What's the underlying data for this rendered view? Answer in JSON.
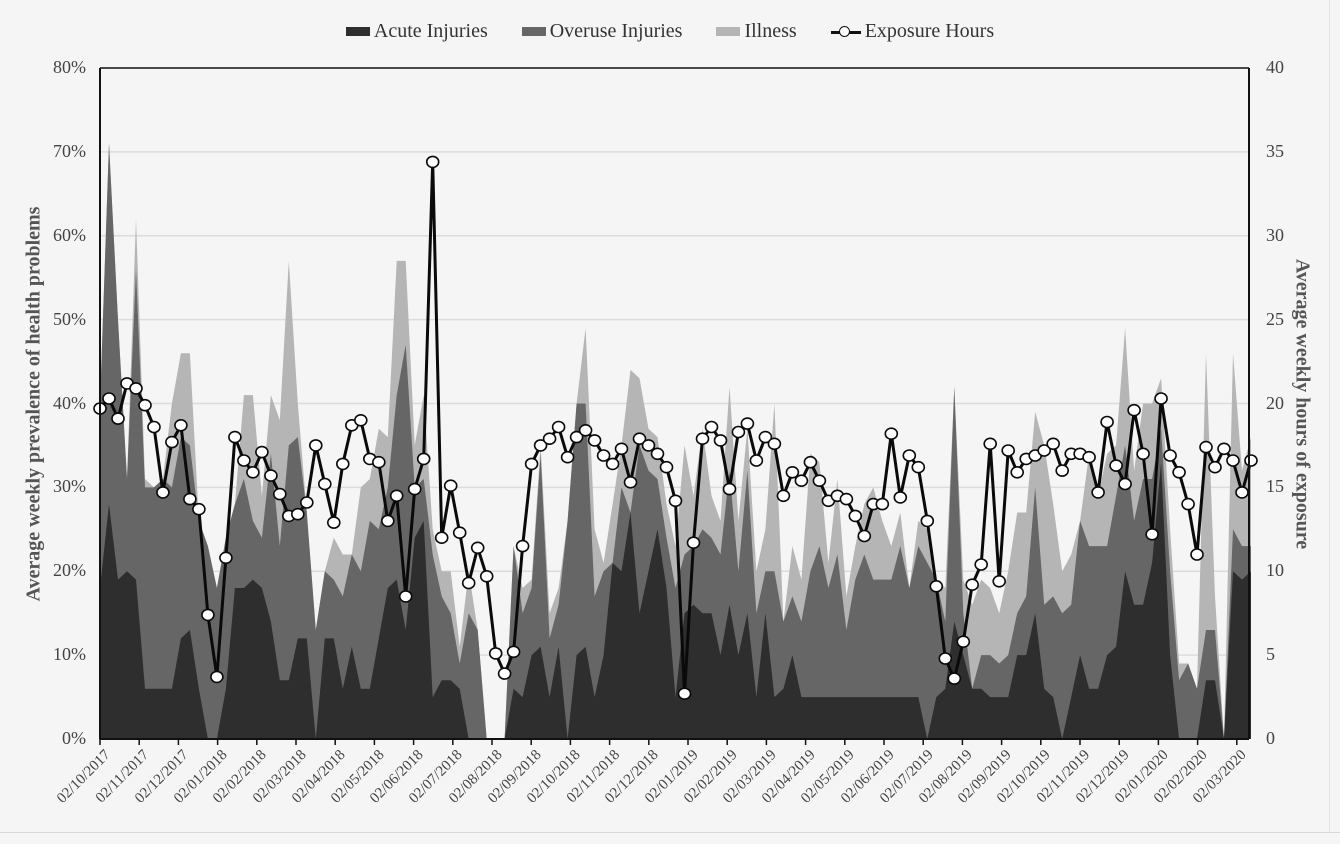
{
  "legend": {
    "acute": "Acute Injuries",
    "overuse": "Overuse Injuries",
    "illness": "Illness",
    "exposure": "Exposure Hours"
  },
  "axes": {
    "ylabel_left": "Average weekly prevalence of health problems",
    "ylabel_right": "Average weekly hours of exposure",
    "yticks_left": [
      "0%",
      "10%",
      "20%",
      "30%",
      "40%",
      "50%",
      "60%",
      "70%",
      "80%"
    ],
    "yticks_right": [
      "0",
      "5",
      "10",
      "15",
      "20",
      "25",
      "30",
      "35",
      "40"
    ],
    "xticks": [
      "02/10/2017",
      "02/11/2017",
      "02/12/2017",
      "02/01/2018",
      "02/02/2018",
      "02/03/2018",
      "02/04/2018",
      "02/05/2018",
      "02/06/2018",
      "02/07/2018",
      "02/08/2018",
      "02/09/2018",
      "02/10/2018",
      "02/11/2018",
      "02/12/2018",
      "02/01/2019",
      "02/02/2019",
      "02/03/2019",
      "02/04/2019",
      "02/05/2019",
      "02/06/2019",
      "02/07/2019",
      "02/08/2019",
      "02/09/2019",
      "02/10/2019",
      "02/11/2019",
      "02/12/2019",
      "02/01/2020",
      "02/02/2020",
      "02/03/2020"
    ]
  },
  "colors": {
    "acute": "#2e2e2e",
    "overuse": "#666666",
    "illness": "#b5b5b5",
    "exposure_line": "#0a0a0a",
    "marker_fill": "#ffffff",
    "grid": "#dcdcdc",
    "background": "#f5f5f5"
  },
  "chart_data": {
    "type": "area",
    "subtype": "stacked area (left axis, %) with line+markers overlay (right axis, hours)",
    "title": "",
    "xlabel": "",
    "ylabel": "Average weekly prevalence of health problems",
    "ylabel_secondary": "Average weekly hours of exposure",
    "ylim": [
      0,
      80
    ],
    "ylim_secondary": [
      0,
      40
    ],
    "grid": true,
    "legend_position": "top",
    "x_tick_labels": [
      "02/10/2017",
      "02/11/2017",
      "02/12/2017",
      "02/01/2018",
      "02/02/2018",
      "02/03/2018",
      "02/04/2018",
      "02/05/2018",
      "02/06/2018",
      "02/07/2018",
      "02/08/2018",
      "02/09/2018",
      "02/10/2018",
      "02/11/2018",
      "02/12/2018",
      "02/01/2019",
      "02/02/2019",
      "02/03/2019",
      "02/04/2019",
      "02/05/2019",
      "02/06/2019",
      "02/07/2019",
      "02/08/2019",
      "02/09/2019",
      "02/10/2019",
      "02/11/2019",
      "02/12/2019",
      "02/01/2020",
      "02/02/2020",
      "02/03/2020"
    ],
    "x_unit": "week",
    "series": [
      {
        "name": "Acute Injuries",
        "axis": "left",
        "unit": "%",
        "values": [
          18,
          28,
          19,
          20,
          19,
          6,
          6,
          6,
          6,
          12,
          13,
          6,
          0,
          0,
          6,
          18,
          18,
          19,
          18,
          14,
          7,
          7,
          12,
          12,
          0,
          12,
          12,
          6,
          11,
          6,
          6,
          12,
          18,
          19,
          13,
          24,
          26,
          5,
          7,
          7,
          6,
          0,
          0,
          0,
          0,
          0,
          6,
          5,
          10,
          11,
          5,
          11,
          0,
          10,
          11,
          5,
          10,
          21,
          20,
          27,
          15,
          20,
          25,
          18,
          5,
          15,
          16,
          15,
          15,
          10,
          16,
          10,
          15,
          5,
          15,
          5,
          6,
          10,
          5,
          5,
          5,
          5,
          5,
          5,
          5,
          5,
          5,
          5,
          5,
          5,
          5,
          5,
          0,
          5,
          6,
          14,
          10,
          6,
          6,
          5,
          5,
          5,
          10,
          10,
          15,
          6,
          5,
          0,
          5,
          10,
          6,
          6,
          10,
          11,
          20,
          16,
          16,
          21,
          33,
          10,
          0,
          0,
          0,
          7,
          7,
          0,
          20,
          19,
          20
        ]
      },
      {
        "name": "Overuse Injuries",
        "axis": "left",
        "unit": "%",
        "values": [
          22,
          43,
          31,
          11,
          37,
          24,
          24,
          25,
          24,
          24,
          22,
          20,
          23,
          18,
          18,
          10,
          13,
          7,
          6,
          20,
          16,
          28,
          24,
          15,
          13,
          8,
          7,
          11,
          11,
          14,
          20,
          13,
          12,
          22,
          34,
          6,
          5,
          17,
          10,
          8,
          3,
          15,
          13,
          0,
          0,
          0,
          17,
          10,
          8,
          23,
          7,
          5,
          26,
          30,
          29,
          12,
          10,
          0,
          10,
          0,
          20,
          12,
          6,
          6,
          13,
          7,
          7,
          10,
          9,
          12,
          16,
          10,
          17,
          10,
          5,
          15,
          8,
          7,
          9,
          15,
          18,
          13,
          17,
          8,
          14,
          17,
          14,
          14,
          14,
          18,
          13,
          18,
          21,
          14,
          8,
          28,
          5,
          0,
          4,
          5,
          4,
          5,
          5,
          7,
          15,
          10,
          12,
          15,
          11,
          16,
          17,
          17,
          13,
          18,
          15,
          10,
          15,
          10,
          4,
          10,
          7,
          9,
          6,
          6,
          6,
          0,
          5,
          4,
          3
        ]
      },
      {
        "name": "Illness",
        "axis": "left",
        "unit": "%",
        "values": [
          0,
          0,
          0,
          0,
          6,
          1,
          0,
          0,
          10,
          10,
          11,
          0,
          0,
          0,
          0,
          0,
          10,
          15,
          5,
          7,
          15,
          22,
          4,
          0,
          0,
          0,
          5,
          5,
          0,
          10,
          5,
          12,
          6,
          16,
          10,
          5,
          10,
          3,
          3,
          5,
          2,
          5,
          0,
          0,
          0,
          0,
          0,
          3,
          1,
          1,
          3,
          2,
          0,
          0,
          9,
          8,
          1,
          7,
          5,
          17,
          8,
          5,
          5,
          4,
          5,
          13,
          6,
          12,
          5,
          4,
          10,
          6,
          5,
          5,
          5,
          20,
          0,
          6,
          5,
          14,
          10,
          3,
          9,
          4,
          4,
          6,
          11,
          7,
          4,
          4,
          0,
          3,
          4,
          0,
          4,
          0,
          4,
          10,
          9,
          8,
          6,
          10,
          12,
          10,
          9,
          19,
          11,
          5,
          6,
          0,
          11,
          6,
          11,
          6,
          14,
          6,
          9,
          9,
          6,
          5,
          2,
          0,
          0,
          33,
          4,
          0,
          21,
          9,
          13
        ]
      },
      {
        "name": "Exposure Hours",
        "axis": "right",
        "unit": "hours",
        "values": [
          19.7,
          20.3,
          19.1,
          21.2,
          20.9,
          19.9,
          18.6,
          14.7,
          17.7,
          18.7,
          14.3,
          13.7,
          7.4,
          3.7,
          10.8,
          18.0,
          16.6,
          15.9,
          17.1,
          15.7,
          14.6,
          13.3,
          13.4,
          14.1,
          17.5,
          15.2,
          12.9,
          16.4,
          18.7,
          19.0,
          16.7,
          16.5,
          13.0,
          14.5,
          8.5,
          14.9,
          16.7,
          34.4,
          12.0,
          15.1,
          12.3,
          9.3,
          11.4,
          9.7,
          5.1,
          3.9,
          5.2,
          11.5,
          16.4,
          17.5,
          17.9,
          18.6,
          16.8,
          18.0,
          18.4,
          17.8,
          16.9,
          16.4,
          17.3,
          15.3,
          17.9,
          17.5,
          17.0,
          16.2,
          14.2,
          2.7,
          11.7,
          17.9,
          18.6,
          17.8,
          14.9,
          18.3,
          18.8,
          16.6,
          18.0,
          17.6,
          14.5,
          15.9,
          15.4,
          16.5,
          15.4,
          14.2,
          14.5,
          14.3,
          13.3,
          12.1,
          14.0,
          14.0,
          18.2,
          14.4,
          16.9,
          16.2,
          13.0,
          9.1,
          4.8,
          3.6,
          5.8,
          9.2,
          10.4,
          17.6,
          9.4,
          17.2,
          15.9,
          16.7,
          16.9,
          17.2,
          17.6,
          16.0,
          17.0,
          17.0,
          16.8,
          14.7,
          18.9,
          16.3,
          15.2,
          19.6,
          17.0,
          12.2,
          20.3,
          16.9,
          15.9,
          14.0,
          11.0,
          17.4,
          16.2,
          17.3,
          16.6,
          14.7,
          16.6
        ]
      }
    ]
  }
}
